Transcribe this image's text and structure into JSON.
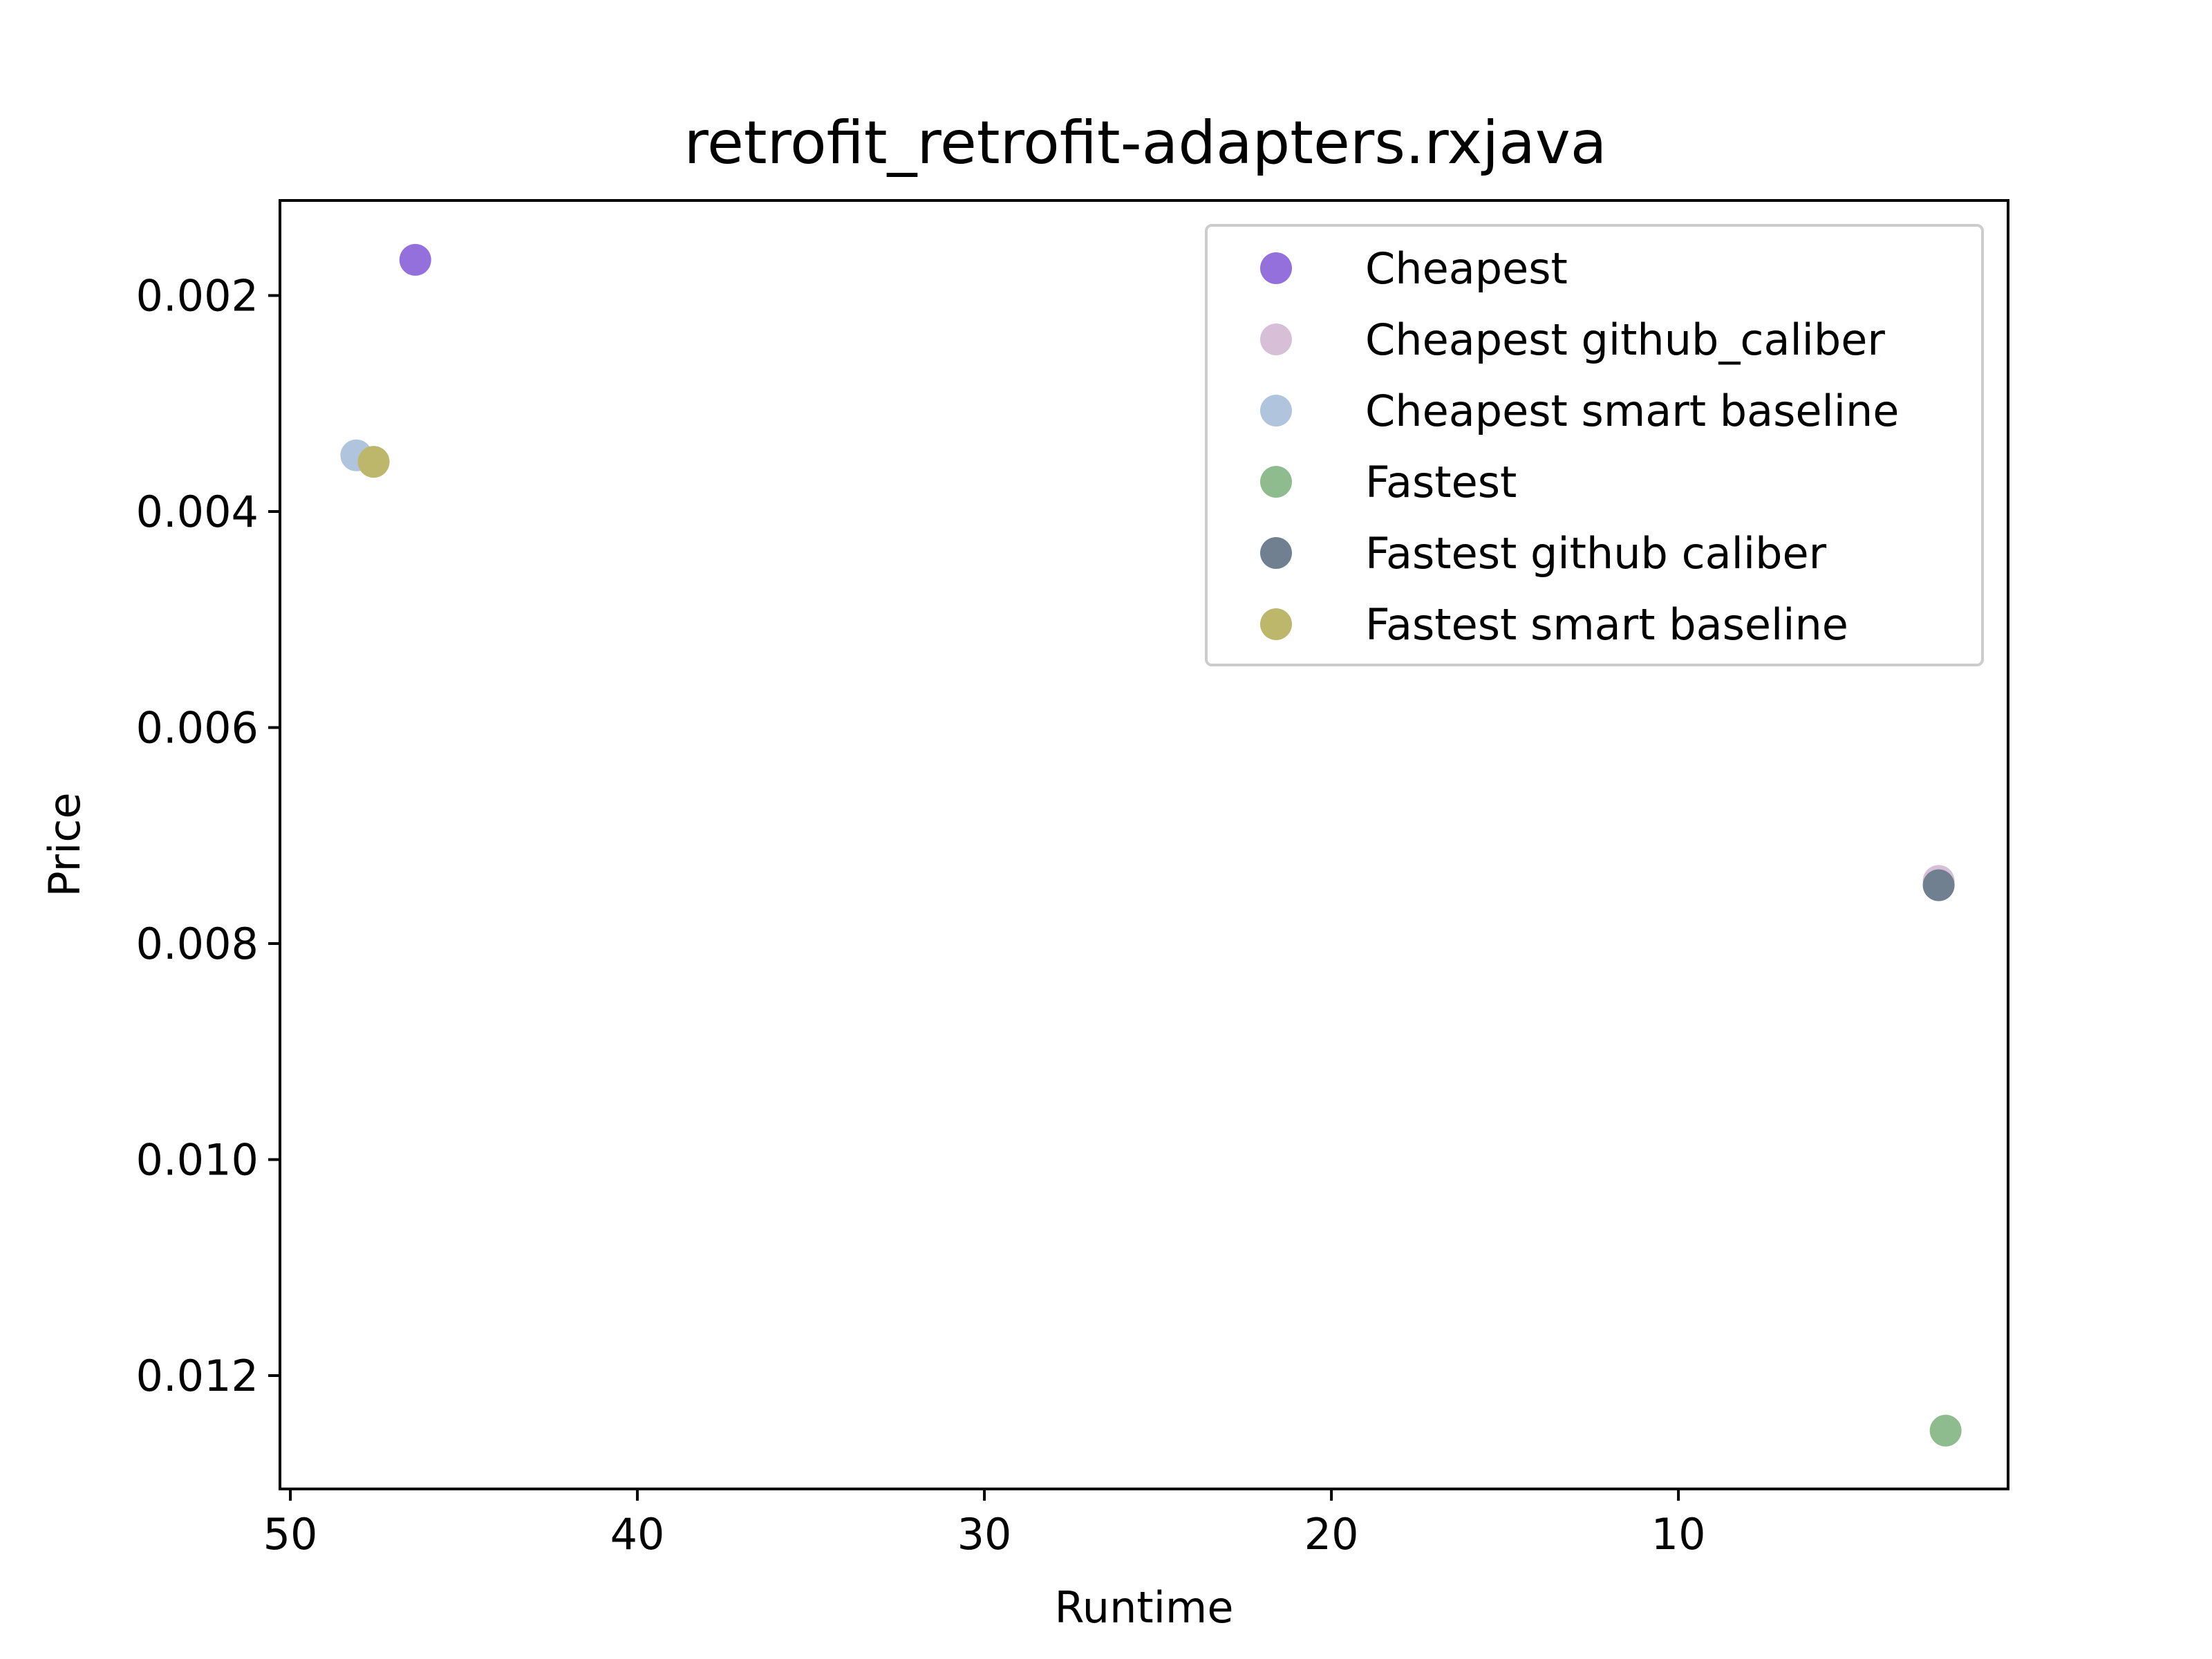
{
  "chart_data": {
    "type": "scatter",
    "title": "retrofit_retrofit-adapters.rxjava",
    "xlabel": "Runtime",
    "ylabel": "Price",
    "x_inverted": true,
    "y_inverted": true,
    "xlim": [
      50.3,
      0.5
    ],
    "ylim": [
      0.00112,
      0.01305
    ],
    "xticks": [
      50,
      40,
      30,
      20,
      10
    ],
    "xtick_labels": [
      "50",
      "40",
      "30",
      "20",
      "10"
    ],
    "yticks": [
      0.002,
      0.004,
      0.006,
      0.008,
      0.01,
      0.012
    ],
    "ytick_labels": [
      "0.002",
      "0.004",
      "0.006",
      "0.008",
      "0.010",
      "0.012"
    ],
    "grid": false,
    "legend_position": "top-right",
    "series": [
      {
        "name": "Cheapest",
        "color": "#9370DB",
        "points": [
          {
            "x": 46.4,
            "y": 0.00167
          }
        ]
      },
      {
        "name": "Cheapest github_caliber",
        "color": "#D8BFD8",
        "points": [
          {
            "x": 2.5,
            "y": 0.00742
          }
        ]
      },
      {
        "name": "Cheapest smart baseline",
        "color": "#B0C4DE",
        "points": [
          {
            "x": 48.1,
            "y": 0.00348
          }
        ]
      },
      {
        "name": "Fastest",
        "color": "#8FBC8F",
        "points": [
          {
            "x": 2.3,
            "y": 0.01251
          }
        ]
      },
      {
        "name": "Fastest github caliber",
        "color": "#708090",
        "points": [
          {
            "x": 2.5,
            "y": 0.00746
          }
        ]
      },
      {
        "name": "Fastest smart baseline",
        "color": "#BDB76B",
        "points": [
          {
            "x": 47.6,
            "y": 0.00354
          }
        ]
      }
    ]
  }
}
